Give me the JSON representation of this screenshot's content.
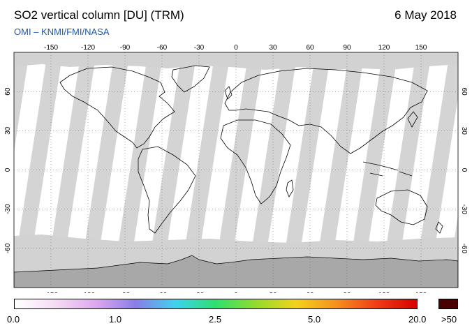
{
  "header": {
    "title": "SO2 vertical column [DU] (TRM)",
    "date": "6 May 2018",
    "credit": "OMI  –  KNMI/FMI/NASA"
  },
  "map": {
    "lon_ticks": [
      "-150",
      "-120",
      "-90",
      "-60",
      "-30",
      "0",
      "30",
      "60",
      "90",
      "120",
      "150"
    ],
    "lat_ticks": [
      "60",
      "30",
      "0",
      "-30",
      "-60"
    ],
    "colors": {
      "background": "#ffffff",
      "swath_gap": "#d4d4d4",
      "polar_night": "#a8a8a8",
      "coast": "#000000"
    }
  },
  "colorbar": {
    "labels": [
      "0.0",
      "1.0",
      "2.5",
      "5.0",
      "20.0",
      ">50"
    ],
    "stops": [
      "#ffffff",
      "#f7dcf5",
      "#e0a8ee",
      "#8a7de8",
      "#3fd2ee",
      "#2ee06f",
      "#93dc2d",
      "#f3d21c",
      "#f6901e",
      "#f03c16",
      "#d60000"
    ],
    "over_color": "#4a0000"
  }
}
